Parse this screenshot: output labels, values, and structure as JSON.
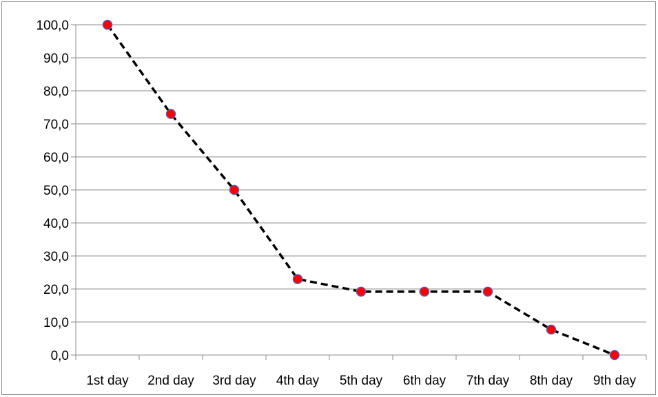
{
  "chart_data": {
    "type": "line",
    "title": "",
    "xlabel": "",
    "ylabel": "",
    "categories": [
      "1st day",
      "2nd day",
      "3rd day",
      "4th day",
      "5th day",
      "6th day",
      "7th day",
      "8th day",
      "9th day"
    ],
    "series": [
      {
        "values": [
          100.0,
          73.0,
          50.0,
          23.0,
          19.2,
          19.2,
          19.2,
          7.7,
          0.0
        ],
        "line_color": "#000000",
        "line_style": "dashed",
        "marker_fill": "#ff0000",
        "marker_stroke": "#5a5ab4"
      }
    ],
    "ylim": [
      0,
      100
    ],
    "ytick_step": 10,
    "ytick_labels": [
      "0,0",
      "10,0",
      "20,0",
      "30,0",
      "40,0",
      "50,0",
      "60,0",
      "70,0",
      "80,0",
      "90,0",
      "100,0"
    ],
    "grid": true,
    "gridline_color": "#8c8c8c",
    "legend": "none"
  }
}
